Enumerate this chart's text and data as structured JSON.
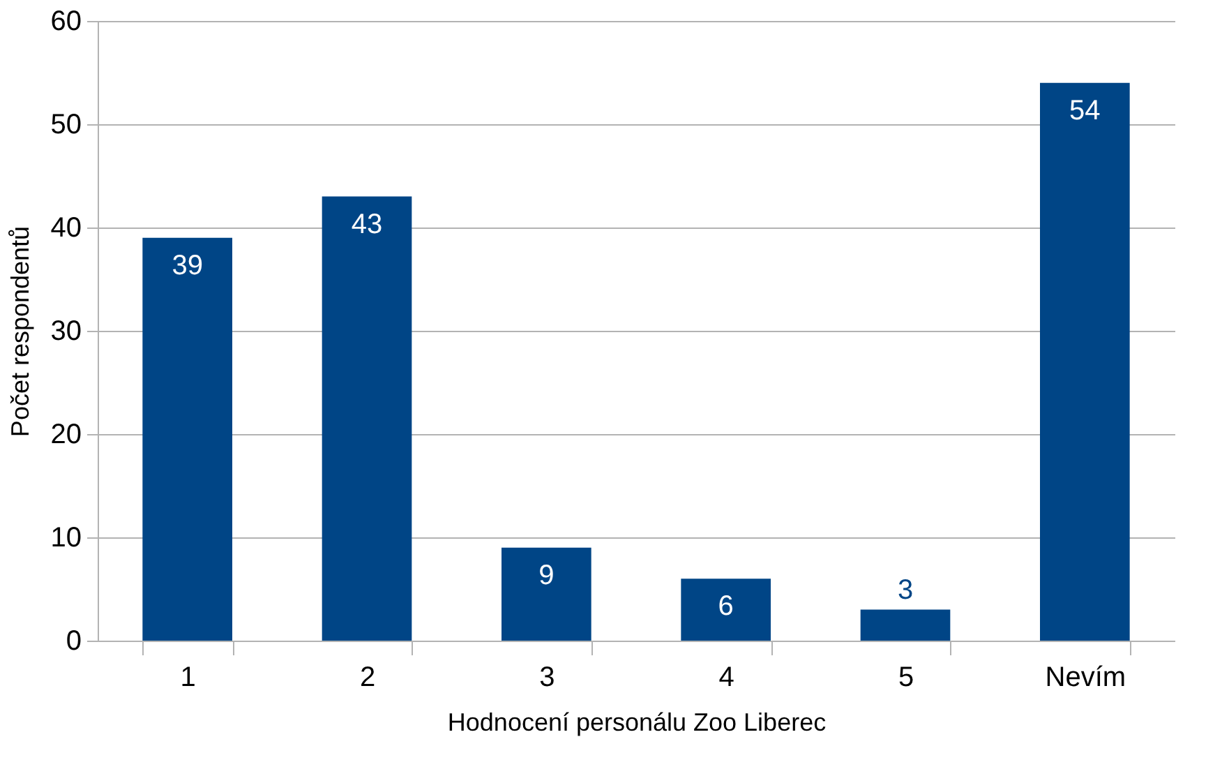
{
  "chart_data": {
    "type": "bar",
    "xlabel": "Hodnocení personálu Zoo Liberec",
    "ylabel": "Počet respondentů",
    "categories": [
      "1",
      "2",
      "3",
      "4",
      "5",
      "Nevím"
    ],
    "values": [
      39,
      43,
      9,
      6,
      3,
      54
    ],
    "color": "#004586",
    "ylim": [
      0,
      60
    ],
    "yticks": [
      0,
      10,
      20,
      30,
      40,
      50,
      60
    ],
    "grid": "y",
    "data_labels": true
  }
}
